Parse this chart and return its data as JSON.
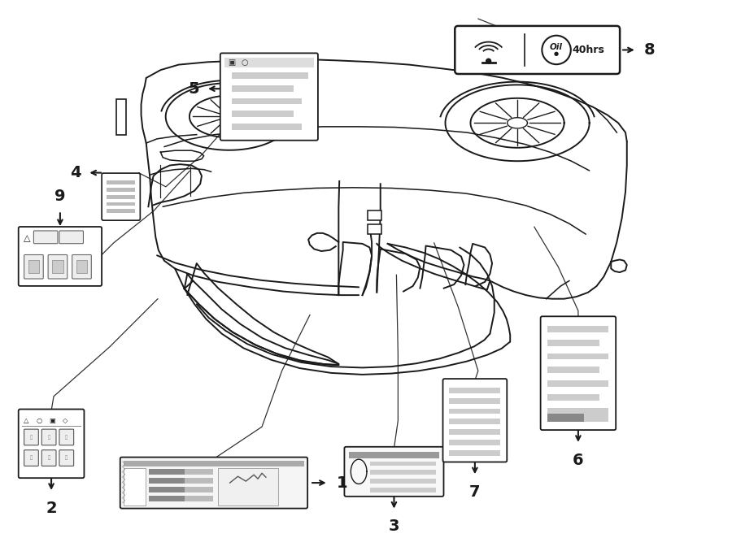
{
  "bg_color": "#ffffff",
  "line_color": "#1a1a1a",
  "figsize": [
    9.0,
    6.62
  ],
  "dpi": 100,
  "car_color": "#1a1a1a",
  "label_color": "#1a1a1a",
  "gray_fill": "#cccccc",
  "light_gray": "#e8e8e8"
}
